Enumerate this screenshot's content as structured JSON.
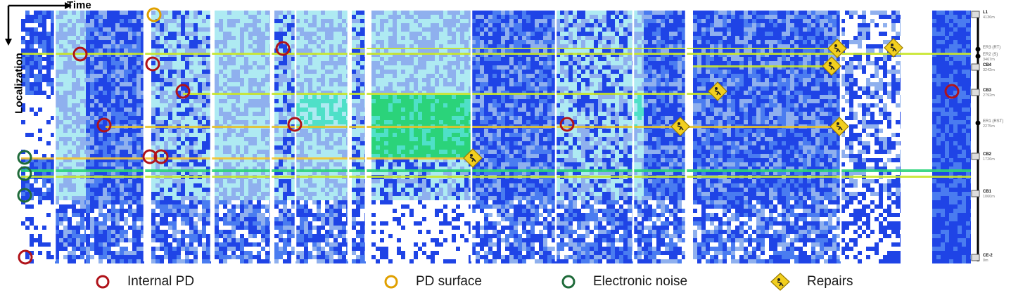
{
  "chart_data": {
    "type": "heatmap",
    "x_axis_label": "Time",
    "y_axis_label": "Localization",
    "location_markers": [
      {
        "name": "L1",
        "distance": "4136m"
      },
      {
        "name": "ER3 (RT)",
        "distance": ""
      },
      {
        "name": "ER2 (S)",
        "distance": "3467m"
      },
      {
        "name": "CB4",
        "distance": "3242m"
      },
      {
        "name": "CB3",
        "distance": "2792m"
      },
      {
        "name": "ER1 (RST)",
        "distance": "2275m"
      },
      {
        "name": "CB2",
        "distance": "1726m"
      },
      {
        "name": "CB1",
        "distance": "1060m"
      },
      {
        "name": "CE-2",
        "distance": "0m"
      }
    ],
    "legend": [
      {
        "name": "Internal PD",
        "color": "#b0131a"
      },
      {
        "name": "PD surface",
        "color": "#e0a000"
      },
      {
        "name": "Electronic noise",
        "color": "#1f6b3a"
      },
      {
        "name": "Repairs",
        "color": "#f2cf1f"
      }
    ],
    "colormap": [
      "#ffffff",
      "#1f44e6",
      "#4a7cf0",
      "#8fb0ee",
      "#aeeaf2",
      "#4fe0c8",
      "#2bd37a",
      "#c8e62a",
      "#f7c52a"
    ]
  }
}
